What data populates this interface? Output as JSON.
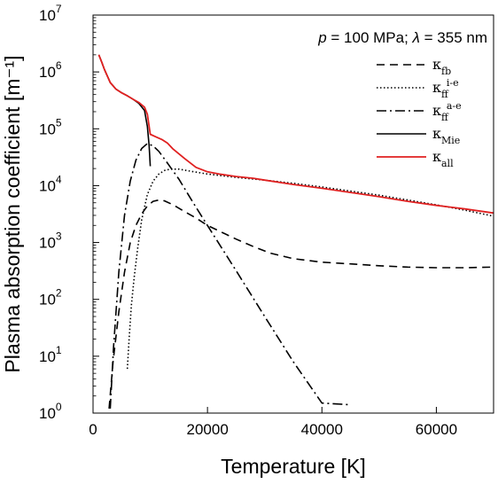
{
  "chart_data": {
    "type": "line",
    "title": "",
    "annotation": {
      "pre": "p",
      "mid": " = 100 MPa; ",
      "lambda": "λ",
      "post": " = 355 nm"
    },
    "xlabel": "Temperature [K]",
    "ylabel": "Plasma absorption coefficient [m⁻¹]",
    "xlim": [
      0,
      70000
    ],
    "ylim": [
      1,
      10000000
    ],
    "yscale": "log",
    "grid": false,
    "legend_position": "top-right",
    "xticks": [
      {
        "value": 0,
        "label": "0"
      },
      {
        "value": 20000,
        "label": "20000"
      },
      {
        "value": 40000,
        "label": "40000"
      },
      {
        "value": 60000,
        "label": "60000"
      }
    ],
    "yticks": [
      {
        "value": 1,
        "base": "10",
        "exp": "0"
      },
      {
        "value": 10,
        "base": "10",
        "exp": "1"
      },
      {
        "value": 100,
        "base": "10",
        "exp": "2"
      },
      {
        "value": 1000,
        "base": "10",
        "exp": "3"
      },
      {
        "value": 10000,
        "base": "10",
        "exp": "4"
      },
      {
        "value": 100000,
        "base": "10",
        "exp": "5"
      },
      {
        "value": 1000000,
        "base": "10",
        "exp": "6"
      },
      {
        "value": 10000000,
        "base": "10",
        "exp": "7"
      }
    ],
    "series": [
      {
        "name": "κfb",
        "symbol": "κ",
        "sub": "fb",
        "sup": "",
        "color": "#000000",
        "dash": "9,6",
        "x": [
          2800,
          3500,
          4500,
          5500,
          6500,
          7500,
          8500,
          9500,
          10500,
          11500,
          12500,
          14000,
          16000,
          18000,
          20000,
          22000,
          25000,
          28000,
          31000,
          35000,
          40000,
          45000,
          50000,
          55000,
          60000,
          65000,
          70000
        ],
        "y": [
          1.2,
          8,
          60,
          300,
          1000,
          2000,
          3200,
          4400,
          5300,
          5600,
          5400,
          4600,
          3500,
          2700,
          2000,
          1600,
          1150,
          850,
          650,
          520,
          450,
          420,
          390,
          370,
          360,
          360,
          370
        ]
      },
      {
        "name": "κff i-e",
        "symbol": "κ",
        "sub": "ff",
        "sup": "i-e",
        "color": "#000000",
        "dash": "1.5,2.5",
        "x": [
          6000,
          6300,
          6700,
          7200,
          7800,
          8500,
          9500,
          10500,
          11500,
          12500,
          13500,
          15000,
          17000,
          20000,
          25000,
          30000,
          35000,
          40000,
          45000,
          50000,
          55000,
          60000,
          65000,
          70000
        ],
        "y": [
          6,
          20,
          80,
          250,
          800,
          2500,
          7000,
          12000,
          16000,
          18500,
          19500,
          19500,
          18000,
          16000,
          14000,
          12500,
          11000,
          9500,
          8000,
          6800,
          5600,
          4600,
          3700,
          2900
        ]
      },
      {
        "name": "κff a-e",
        "symbol": "κ",
        "sub": "ff",
        "sup": "a-e",
        "color": "#000000",
        "dash": "11,4,2,4",
        "x": [
          3000,
          3600,
          4500,
          5500,
          6500,
          7500,
          8500,
          9500,
          10500,
          11500,
          13000,
          15000,
          17500,
          20000,
          25000,
          30000,
          35000,
          40000,
          45000
        ],
        "y": [
          1.2,
          15,
          300,
          3000,
          12000,
          28000,
          45000,
          55000,
          50000,
          40000,
          25000,
          13000,
          5000,
          2000,
          320,
          50,
          8,
          1.5,
          1.4
        ]
      },
      {
        "name": "κMie",
        "symbol": "κ",
        "sub": "Mie",
        "sup": "",
        "color": "#000000",
        "dash": "",
        "x": [
          1000,
          1500,
          2000,
          3000,
          4000,
          5000,
          6000,
          7000,
          8000,
          9000,
          9500,
          9800,
          10000
        ],
        "y": [
          2000000,
          1500000,
          1100000,
          650000,
          500000,
          430000,
          380000,
          330000,
          280000,
          210000,
          110000,
          50000,
          22000
        ]
      },
      {
        "name": "κall",
        "symbol": "κ",
        "sub": "all",
        "sup": "",
        "color": "#e02020",
        "dash": "",
        "x": [
          1000,
          1500,
          2000,
          3000,
          4000,
          5000,
          6000,
          7000,
          8000,
          9000,
          9500,
          9800,
          10000,
          11000,
          12000,
          13000,
          14000,
          16000,
          18000,
          20000,
          22000,
          25000,
          28000,
          30000,
          35000,
          40000,
          45000,
          50000,
          55000,
          60000,
          65000,
          70000
        ],
        "y": [
          2000000,
          1500000,
          1100000,
          650000,
          500000,
          430000,
          380000,
          330000,
          290000,
          240000,
          180000,
          110000,
          80000,
          72000,
          65000,
          56000,
          44000,
          30000,
          21000,
          17500,
          16000,
          14500,
          13500,
          12500,
          10500,
          9000,
          7600,
          6400,
          5300,
          4500,
          3900,
          3300
        ]
      }
    ]
  }
}
